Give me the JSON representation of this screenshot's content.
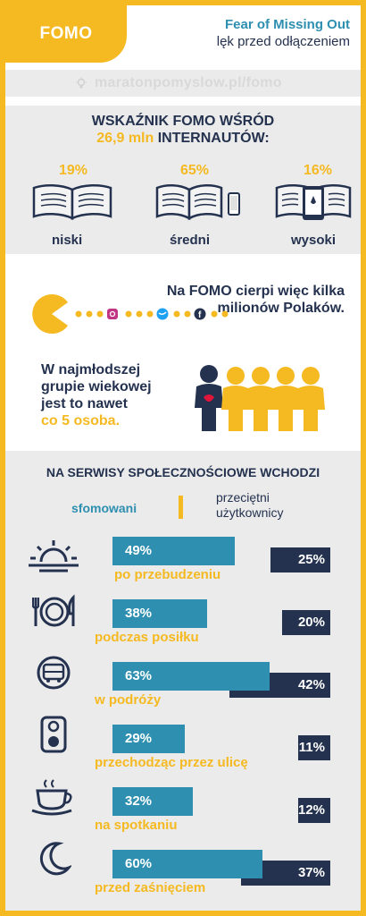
{
  "header": {
    "tag": "FOMO",
    "title": "Fear of Missing Out",
    "subtitle": "lęk przed odłączeniem"
  },
  "url": "maratonpomyslow.pl/fomo",
  "indicator": {
    "title_line1": "WSKAŹNIK FOMO WŚRÓD",
    "title_highlight": "26,9 mln",
    "title_line2": "INTERNAUTÓW:",
    "levels": [
      {
        "percent": "19%",
        "label": "niski"
      },
      {
        "percent": "65%",
        "label": "średni"
      },
      {
        "percent": "16%",
        "label": "wysoki"
      }
    ]
  },
  "millions": {
    "text": "Na FOMO cierpi więc kilka milionów Polaków."
  },
  "youngest": {
    "line1": "W najmłodszej",
    "line2": "grupie wiekowej",
    "line3": "jest to nawet",
    "highlight": "co 5 osoba."
  },
  "social": {
    "title": "NA SERWISY SPOŁECZNOŚCIOWE WCHODZI",
    "legend_a": "sfomowani",
    "legend_b_line1": "przeciętni",
    "legend_b_line2": "użytkownicy",
    "colors": {
      "fomo": "#2e8fb0",
      "average": "#24324f",
      "accent": "#f5b921"
    },
    "rows": [
      {
        "icon": "sunrise-icon",
        "label": "po przebudzeniu",
        "fomo_value": "49%",
        "fomo": 49,
        "average_value": "25%",
        "average": 25
      },
      {
        "icon": "plate-cutlery-icon",
        "label": "podczas posiłku",
        "fomo_value": "38%",
        "fomo": 38,
        "average_value": "20%",
        "average": 20
      },
      {
        "icon": "bus-icon",
        "label": "w podróży",
        "fomo_value": "63%",
        "fomo": 63,
        "average_value": "42%",
        "average": 42
      },
      {
        "icon": "traffic-light-icon",
        "label": "przechodząc przez ulicę",
        "fomo_value": "29%",
        "fomo": 29,
        "average_value": "11%",
        "average": 11
      },
      {
        "icon": "coffee-cup-icon",
        "label": "na spotkaniu",
        "fomo_value": "32%",
        "fomo": 32,
        "average_value": "12%",
        "average": 12
      },
      {
        "icon": "moon-icon",
        "label": "przed zaśnięciem",
        "fomo_value": "60%",
        "fomo": 60,
        "average_value": "37%",
        "average": 37
      }
    ]
  }
}
